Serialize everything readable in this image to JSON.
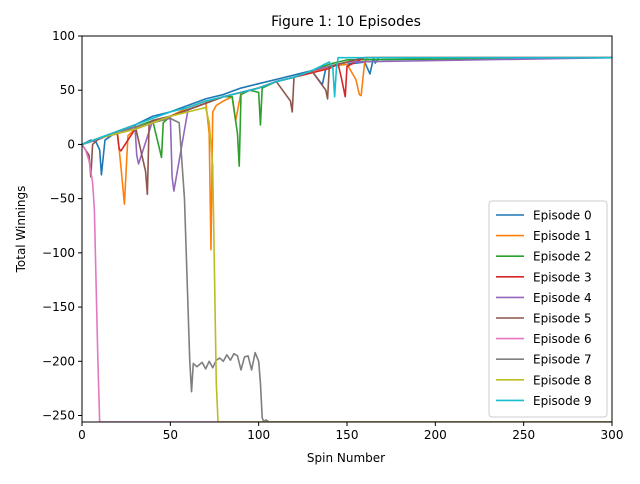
{
  "chart_data": {
    "type": "line",
    "title": "Figure 1: 10 Episodes",
    "xlabel": "Spin Number",
    "ylabel": "Total Winnings",
    "xlim": [
      0,
      300
    ],
    "ylim": [
      -256,
      100
    ],
    "x_ticks": [
      0,
      50,
      100,
      150,
      200,
      250,
      300
    ],
    "y_ticks": [
      100,
      50,
      0,
      -50,
      -100,
      -150,
      -200,
      -250
    ],
    "grid": false,
    "legend_position": "lower-right",
    "series": [
      {
        "name": "Episode 0",
        "color": "#1f77b4",
        "x": [
          0,
          5,
          8,
          10,
          11,
          13,
          20,
          30,
          40,
          50,
          60,
          70,
          80,
          90,
          100,
          110,
          120,
          130,
          136,
          138,
          140,
          150,
          160,
          163,
          165,
          166,
          168,
          300
        ],
        "y": [
          0,
          4,
          2,
          -5,
          -28,
          4,
          12,
          18,
          26,
          30,
          36,
          42,
          46,
          52,
          56,
          60,
          64,
          68,
          55,
          70,
          72,
          74,
          76,
          65,
          80,
          75,
          80,
          80
        ]
      },
      {
        "name": "Episode 1",
        "color": "#ff7f0e",
        "x": [
          0,
          10,
          20,
          22,
          24,
          26,
          30,
          40,
          50,
          60,
          70,
          72,
          73,
          74,
          76,
          80,
          85,
          87,
          90,
          100,
          110,
          120,
          130,
          140,
          150,
          155,
          157,
          158,
          160,
          162,
          300
        ],
        "y": [
          0,
          5,
          12,
          -20,
          -55,
          8,
          14,
          22,
          26,
          34,
          40,
          10,
          -97,
          30,
          36,
          40,
          44,
          22,
          48,
          52,
          58,
          62,
          66,
          72,
          74,
          60,
          46,
          45,
          76,
          80,
          80
        ]
      },
      {
        "name": "Episode 2",
        "color": "#2ca02c",
        "x": [
          0,
          10,
          20,
          30,
          40,
          44,
          45,
          46,
          50,
          60,
          70,
          80,
          85,
          88,
          89,
          90,
          95,
          100,
          101,
          102,
          110,
          120,
          130,
          140,
          150,
          300
        ],
        "y": [
          0,
          6,
          10,
          16,
          22,
          -5,
          -12,
          20,
          26,
          32,
          38,
          44,
          44,
          10,
          -20,
          46,
          50,
          48,
          18,
          52,
          58,
          62,
          68,
          74,
          78,
          80
        ]
      },
      {
        "name": "Episode 3",
        "color": "#d62728",
        "x": [
          0,
          10,
          20,
          21,
          22,
          30,
          40,
          50,
          60,
          70,
          80,
          90,
          100,
          110,
          120,
          130,
          140,
          145,
          147,
          149,
          150,
          155,
          160,
          300
        ],
        "y": [
          0,
          6,
          10,
          -4,
          -6,
          14,
          20,
          26,
          32,
          38,
          44,
          48,
          52,
          58,
          62,
          66,
          70,
          74,
          60,
          44,
          72,
          76,
          80,
          80
        ]
      },
      {
        "name": "Episode 4",
        "color": "#9467bd",
        "x": [
          0,
          10,
          20,
          30,
          31,
          32,
          40,
          50,
          51,
          52,
          60,
          70,
          80,
          90,
          100,
          110,
          120,
          130,
          140,
          150,
          300
        ],
        "y": [
          0,
          5,
          12,
          16,
          -10,
          -18,
          22,
          26,
          -30,
          -43,
          32,
          38,
          44,
          48,
          52,
          58,
          62,
          68,
          72,
          76,
          80
        ]
      },
      {
        "name": "Episode 5",
        "color": "#8c564b",
        "x": [
          0,
          4,
          5,
          6,
          10,
          20,
          30,
          36,
          37,
          38,
          40,
          50,
          60,
          70,
          80,
          90,
          100,
          110,
          118,
          119,
          120,
          130,
          138,
          139,
          140,
          150,
          160,
          300
        ],
        "y": [
          0,
          -10,
          -30,
          0,
          6,
          12,
          18,
          -25,
          -46,
          20,
          22,
          26,
          32,
          38,
          44,
          48,
          52,
          58,
          40,
          30,
          62,
          68,
          50,
          42,
          72,
          76,
          80,
          80
        ]
      },
      {
        "name": "Episode 6",
        "color": "#e377c2",
        "x": [
          0,
          2,
          4,
          6,
          7,
          8,
          9,
          10,
          300
        ],
        "y": [
          0,
          -5,
          -15,
          -35,
          -60,
          -130,
          -200,
          -256,
          -256
        ]
      },
      {
        "name": "Episode 7",
        "color": "#7f7f7f",
        "x": [
          0,
          10,
          20,
          30,
          40,
          50,
          55,
          58,
          60,
          61,
          62,
          63,
          65,
          68,
          70,
          72,
          74,
          76,
          78,
          80,
          82,
          84,
          86,
          88,
          90,
          92,
          94,
          96,
          98,
          100,
          101,
          102,
          103,
          104,
          106,
          300
        ],
        "y": [
          0,
          6,
          10,
          16,
          20,
          24,
          20,
          -50,
          -150,
          -200,
          -228,
          -202,
          -205,
          -201,
          -207,
          -200,
          -206,
          -199,
          -197,
          -200,
          -194,
          -199,
          -193,
          -195,
          -208,
          -196,
          -195,
          -208,
          -192,
          -200,
          -220,
          -252,
          -256,
          -254,
          -256,
          -256
        ]
      },
      {
        "name": "Episode 8",
        "color": "#bcbd22",
        "x": [
          0,
          10,
          20,
          30,
          40,
          50,
          60,
          70,
          72,
          74,
          75,
          76,
          77,
          78,
          300
        ],
        "y": [
          0,
          6,
          10,
          14,
          20,
          26,
          30,
          34,
          20,
          -20,
          -120,
          -220,
          -256,
          -256,
          -256
        ]
      },
      {
        "name": "Episode 9",
        "color": "#17becf",
        "x": [
          0,
          10,
          20,
          30,
          40,
          50,
          60,
          70,
          80,
          90,
          100,
          110,
          120,
          130,
          140,
          142,
          143,
          144,
          145,
          300
        ],
        "y": [
          0,
          6,
          12,
          18,
          24,
          30,
          34,
          40,
          44,
          48,
          52,
          58,
          62,
          68,
          76,
          70,
          44,
          70,
          80,
          80
        ]
      }
    ]
  }
}
